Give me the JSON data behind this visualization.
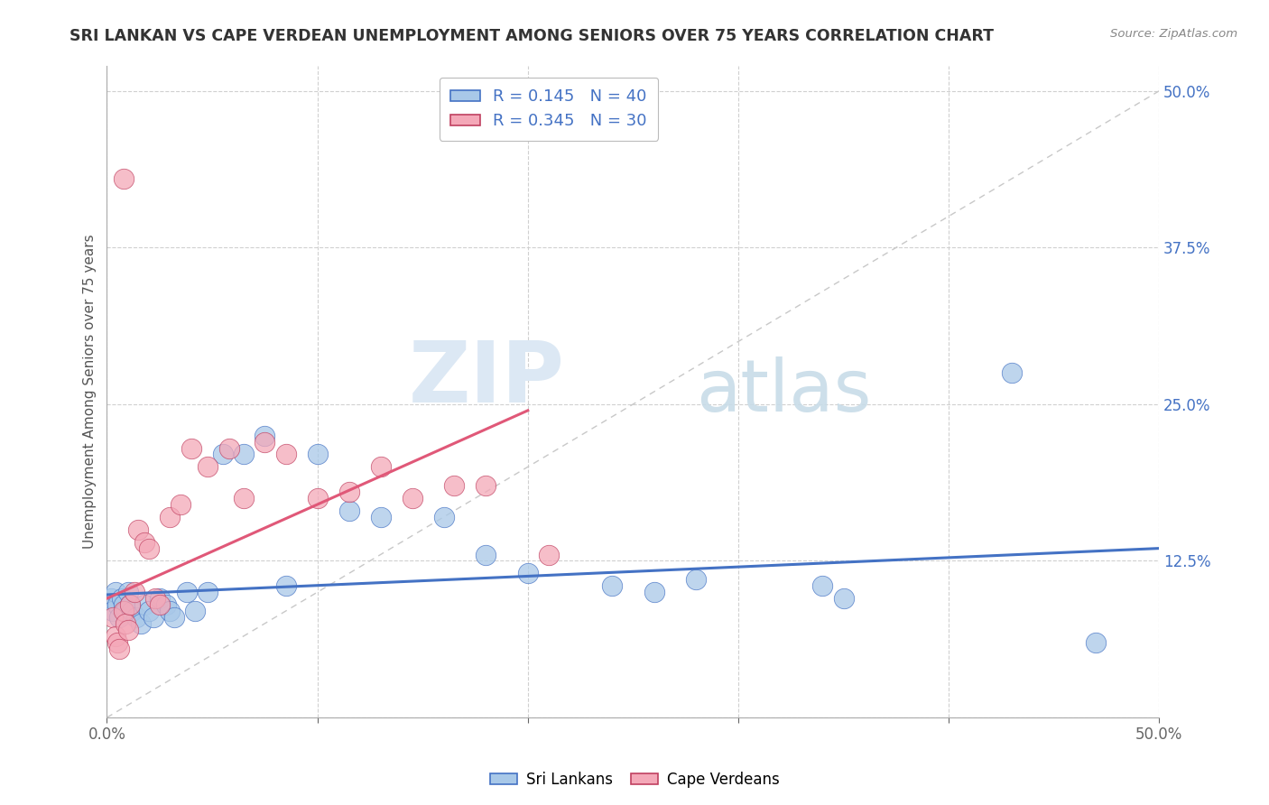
{
  "title": "SRI LANKAN VS CAPE VERDEAN UNEMPLOYMENT AMONG SENIORS OVER 75 YEARS CORRELATION CHART",
  "source": "Source: ZipAtlas.com",
  "ylabel": "Unemployment Among Seniors over 75 years",
  "xlim": [
    0,
    0.5
  ],
  "ylim": [
    0.0,
    0.52
  ],
  "xticks": [
    0.0,
    0.1,
    0.2,
    0.3,
    0.4,
    0.5
  ],
  "xticklabels": [
    "0.0%",
    "",
    "",
    "",
    "",
    "50.0%"
  ],
  "yticks": [
    0.0,
    0.125,
    0.25,
    0.375,
    0.5
  ],
  "yticklabels": [
    "",
    "12.5%",
    "25.0%",
    "37.5%",
    "50.0%"
  ],
  "watermark_zip": "ZIP",
  "watermark_atlas": "atlas",
  "sri_lankan_color": "#a8c8e8",
  "cape_verdean_color": "#f4a8b8",
  "sri_lankan_line_color": "#4472c4",
  "cape_verdean_line_color": "#e05878",
  "legend_R_sri": "0.145",
  "legend_N_sri": "40",
  "legend_R_cape": "0.345",
  "legend_N_cape": "30",
  "sri_x": [
    0.002,
    0.003,
    0.004,
    0.005,
    0.006,
    0.007,
    0.008,
    0.009,
    0.01,
    0.011,
    0.012,
    0.014,
    0.016,
    0.018,
    0.02,
    0.022,
    0.025,
    0.028,
    0.03,
    0.032,
    0.038,
    0.042,
    0.048,
    0.055,
    0.065,
    0.075,
    0.085,
    0.1,
    0.115,
    0.13,
    0.16,
    0.18,
    0.2,
    0.24,
    0.26,
    0.28,
    0.34,
    0.35,
    0.43,
    0.47
  ],
  "sri_y": [
    0.095,
    0.085,
    0.1,
    0.09,
    0.08,
    0.095,
    0.09,
    0.085,
    0.1,
    0.09,
    0.085,
    0.08,
    0.075,
    0.09,
    0.085,
    0.08,
    0.095,
    0.09,
    0.085,
    0.08,
    0.1,
    0.085,
    0.1,
    0.21,
    0.21,
    0.225,
    0.105,
    0.21,
    0.165,
    0.16,
    0.16,
    0.13,
    0.115,
    0.105,
    0.1,
    0.11,
    0.105,
    0.095,
    0.275,
    0.06
  ],
  "cape_x": [
    0.003,
    0.004,
    0.005,
    0.006,
    0.008,
    0.009,
    0.01,
    0.011,
    0.013,
    0.015,
    0.018,
    0.02,
    0.023,
    0.025,
    0.03,
    0.035,
    0.04,
    0.048,
    0.058,
    0.065,
    0.075,
    0.085,
    0.1,
    0.115,
    0.13,
    0.145,
    0.165,
    0.18,
    0.21,
    0.008
  ],
  "cape_y": [
    0.08,
    0.065,
    0.06,
    0.055,
    0.085,
    0.075,
    0.07,
    0.09,
    0.1,
    0.15,
    0.14,
    0.135,
    0.095,
    0.09,
    0.16,
    0.17,
    0.215,
    0.2,
    0.215,
    0.175,
    0.22,
    0.21,
    0.175,
    0.18,
    0.2,
    0.175,
    0.185,
    0.185,
    0.13,
    0.43
  ],
  "background_color": "#ffffff",
  "grid_color": "#d0d0d0",
  "sri_line_x0": 0.0,
  "sri_line_y0": 0.098,
  "sri_line_x1": 0.5,
  "sri_line_y1": 0.135,
  "cape_line_x0": 0.0,
  "cape_line_y0": 0.095,
  "cape_line_x1": 0.2,
  "cape_line_y1": 0.245
}
